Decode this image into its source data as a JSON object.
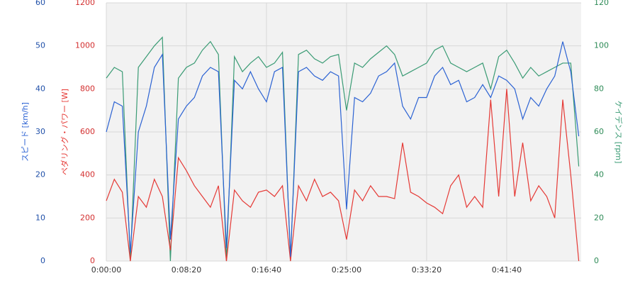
{
  "chart_data": {
    "type": "line",
    "y_label": "スピード [km/h]",
    "y2_label": "ペダリング・パワー [W]",
    "y3_label": "ケイデンス [rpm]",
    "x": [
      0,
      50,
      100,
      150,
      200,
      250,
      300,
      350,
      400,
      450,
      500,
      550,
      600,
      650,
      700,
      750,
      800,
      850,
      900,
      950,
      1000,
      1050,
      1100,
      1150,
      1200,
      1250,
      1300,
      1350,
      1400,
      1450,
      1500,
      1550,
      1600,
      1650,
      1700,
      1750,
      1800,
      1850,
      1900,
      1950,
      2000,
      2050,
      2100,
      2150,
      2200,
      2250,
      2300,
      2350,
      2400,
      2450,
      2500,
      2550,
      2600,
      2650,
      2700,
      2750,
      2800,
      2850,
      2900,
      2950
    ],
    "xlim": [
      0,
      2965
    ],
    "xticks": [
      {
        "value": 0,
        "label": "0:00:00"
      },
      {
        "value": 500,
        "label": "0:08:20"
      },
      {
        "value": 1000,
        "label": "0:16:40"
      },
      {
        "value": 1500,
        "label": "0:25:00"
      },
      {
        "value": 2000,
        "label": "0:33:20"
      },
      {
        "value": 2500,
        "label": "0:41:40"
      }
    ],
    "ylim": [
      0,
      60
    ],
    "yticks": [
      0,
      10,
      20,
      30,
      40,
      50,
      60
    ],
    "y2lim": [
      0,
      1200
    ],
    "y2ticks": [
      0,
      200,
      400,
      600,
      800,
      1000,
      1200
    ],
    "y3lim": [
      0,
      120
    ],
    "y3ticks": [
      0,
      20,
      40,
      60,
      80,
      100,
      120
    ],
    "grid": true,
    "series": [
      {
        "name": "スピード",
        "axis": "y",
        "color": "#2b62d3",
        "values": [
          30,
          37,
          36,
          2,
          30,
          36,
          45,
          48,
          5,
          33,
          36,
          38,
          43,
          45,
          44,
          3,
          42,
          40,
          44,
          40,
          37,
          44,
          45,
          1,
          44,
          45,
          43,
          42,
          44,
          43,
          12,
          38,
          37,
          39,
          43,
          44,
          46,
          36,
          33,
          38,
          38,
          43,
          45,
          41,
          42,
          37,
          38,
          41,
          38,
          43,
          42,
          40,
          33,
          38,
          36,
          40,
          43,
          51,
          44,
          29
        ]
      },
      {
        "name": "ペダリング・パワー",
        "axis": "y2",
        "color": "#e53935",
        "values": [
          280,
          380,
          320,
          0,
          300,
          250,
          380,
          300,
          50,
          480,
          420,
          350,
          300,
          250,
          350,
          0,
          330,
          280,
          250,
          320,
          330,
          300,
          350,
          0,
          350,
          280,
          380,
          300,
          320,
          280,
          100,
          330,
          280,
          350,
          300,
          300,
          290,
          550,
          320,
          300,
          270,
          250,
          220,
          350,
          400,
          250,
          300,
          250,
          750,
          300,
          800,
          300,
          550,
          280,
          350,
          300,
          200,
          750,
          400,
          0
        ]
      },
      {
        "name": "ケイデンス",
        "axis": "y3",
        "color": "#3a9b74",
        "values": [
          85,
          90,
          88,
          0,
          90,
          95,
          100,
          104,
          0,
          85,
          90,
          92,
          98,
          102,
          96,
          0,
          95,
          88,
          92,
          95,
          90,
          92,
          97,
          0,
          96,
          98,
          94,
          92,
          95,
          96,
          70,
          92,
          90,
          94,
          97,
          100,
          96,
          86,
          88,
          90,
          92,
          98,
          100,
          92,
          90,
          88,
          90,
          92,
          80,
          95,
          98,
          92,
          85,
          90,
          86,
          88,
          90,
          92,
          92,
          44
        ]
      }
    ]
  }
}
